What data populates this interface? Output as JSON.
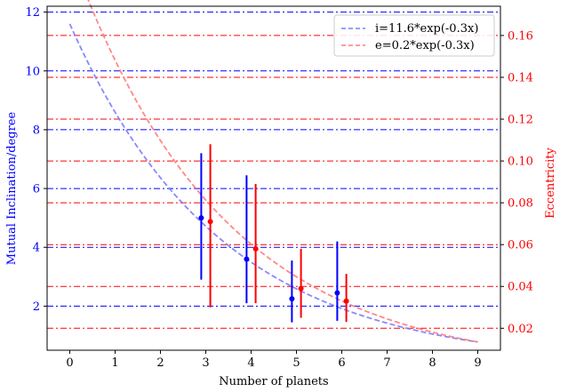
{
  "chart_data": {
    "type": "line",
    "xlabel": "Number of planets",
    "ylabel_left": "Mutual Inclination/degree",
    "ylabel_right": "Eccentricity",
    "xlim": [
      -0.5,
      9.5
    ],
    "ylim_left": [
      0.5,
      12.2
    ],
    "ylim_right": [
      0.0095,
      0.174
    ],
    "x_ticks": [
      0,
      1,
      2,
      3,
      4,
      5,
      6,
      7,
      8,
      9
    ],
    "y_ticks_left": [
      2,
      4,
      6,
      8,
      10,
      12
    ],
    "y_ticks_right": [
      0.02,
      0.04,
      0.06,
      0.08,
      0.1,
      0.12,
      0.14,
      0.16
    ],
    "legend_position": "top-right",
    "colors": {
      "inclination": "#0000ff",
      "eccentricity": "#ff0000",
      "fit_i": "#7b7bff",
      "fit_e": "#ff7b7b"
    },
    "fit_curves": [
      {
        "name": "i=11.6*exp(-0.3x)",
        "axis": "left",
        "amplitude": 11.6,
        "rate": -0.3,
        "x_range": [
          0,
          9
        ],
        "style": "dashed"
      },
      {
        "name": "e=0.2*exp(-0.3x)",
        "axis": "right",
        "amplitude": 0.2,
        "rate": -0.3,
        "x_range": [
          0,
          9
        ],
        "style": "dashed"
      }
    ],
    "inclination_points": [
      {
        "x": 2.9,
        "y": 5.0,
        "low": 2.9,
        "high": 7.2
      },
      {
        "x": 3.9,
        "y": 3.6,
        "low": 2.1,
        "high": 6.45
      },
      {
        "x": 4.9,
        "y": 2.25,
        "low": 1.45,
        "high": 3.55
      },
      {
        "x": 5.9,
        "y": 2.45,
        "low": 1.5,
        "high": 4.2
      }
    ],
    "eccentricity_points": [
      {
        "x": 3.1,
        "y": 0.071,
        "low": 0.03,
        "high": 0.108
      },
      {
        "x": 4.1,
        "y": 0.058,
        "low": 0.032,
        "high": 0.089
      },
      {
        "x": 5.1,
        "y": 0.039,
        "low": 0.025,
        "high": 0.058
      },
      {
        "x": 6.1,
        "y": 0.033,
        "low": 0.023,
        "high": 0.046
      }
    ],
    "hlines_left": [
      2,
      4,
      6,
      8,
      10,
      12
    ],
    "hlines_right": [
      0.02,
      0.04,
      0.06,
      0.08,
      0.1,
      0.12,
      0.14,
      0.16
    ]
  }
}
